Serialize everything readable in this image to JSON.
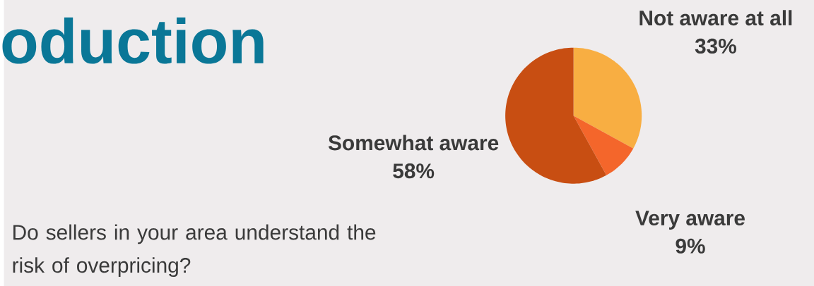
{
  "chart_data": {
    "type": "pie",
    "title": "oduction",
    "annotations": [
      "Do sellers in your area understand the risk of overpricing?"
    ],
    "categories": [
      "Not aware at all",
      "Very aware",
      "Somewhat aware"
    ],
    "values": [
      33,
      9,
      58
    ],
    "value_labels": [
      "33%",
      "9%",
      "58%"
    ],
    "colors": [
      "#f8ae42",
      "#f4662b",
      "#c84e12"
    ]
  }
}
